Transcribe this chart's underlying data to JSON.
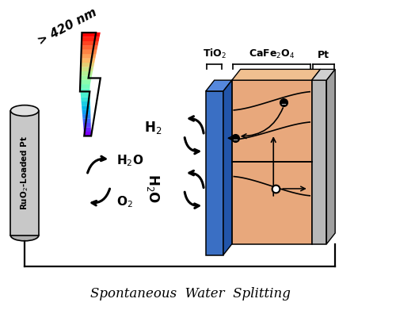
{
  "title": "Spontaneous  Water  Splitting",
  "title_fontsize": 12,
  "background_color": "#ffffff",
  "tio2_color": "#3a6fc4",
  "tio2_top_color": "#5588dd",
  "tio2_side_color": "#2255aa",
  "cafe2o4_color": "#e8a87c",
  "cafe2o4_top_color": "#f0c090",
  "pt_color": "#b8b8b8",
  "pt_top_color": "#d0d0d0",
  "pt_side_color": "#a0a0a0",
  "ruo2_color": "#c8c8c8",
  "ruo2_top_color": "#e0e0e0",
  "ruo2_bot_color": "#b0b0b0",
  "tio2_label": "TiO$_2$",
  "cafe2o4_label": "CaFe$_2$O$_4$",
  "pt_label": "Pt",
  "ruo2_label": "RuO$_2$-Loaded Pt",
  "h2o_label_left": "H$_2$O",
  "o2_label": "O$_2$",
  "h2_label": "H$_2$",
  "h2o_label_right": "H$_2$O",
  "light_label": "> 420 nm",
  "xlim": [
    0,
    10
  ],
  "ylim": [
    0,
    8
  ]
}
